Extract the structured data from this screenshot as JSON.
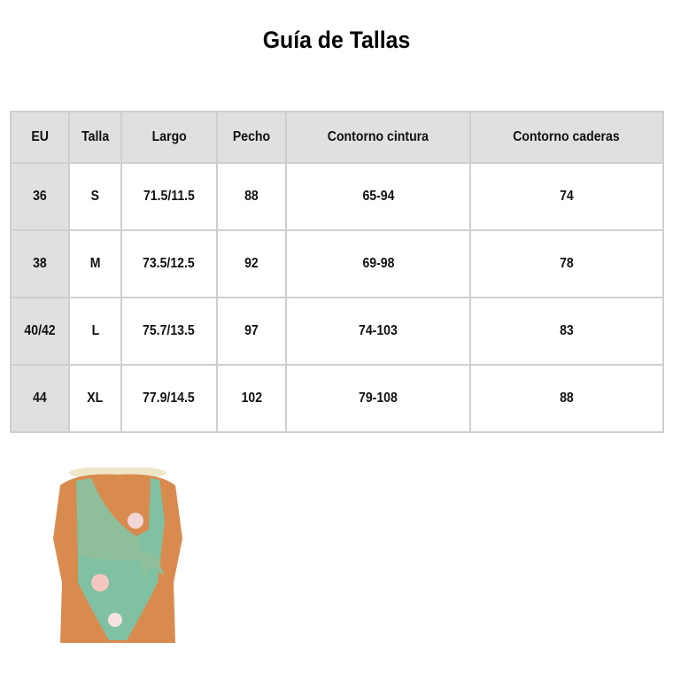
{
  "title": "Guía de Tallas",
  "table": {
    "headers": [
      "EU",
      "Talla",
      "Largo",
      "Pecho",
      "Contorno cintura",
      "Contorno caderas"
    ],
    "rows": [
      [
        "36",
        "S",
        "71.5/11.5",
        "88",
        "65-94",
        "74"
      ],
      [
        "38",
        "M",
        "73.5/12.5",
        "92",
        "69-98",
        "78"
      ],
      [
        "40/42",
        "L",
        "75.7/13.5",
        "97",
        "74-103",
        "83"
      ],
      [
        "44",
        "XL",
        "77.9/14.5",
        "102",
        "79-108",
        "88"
      ]
    ]
  },
  "colors": {
    "header_bg": "#e0e0e0",
    "border": "#cfcfcf",
    "swimsuit_green": "#8fbf9a"
  }
}
